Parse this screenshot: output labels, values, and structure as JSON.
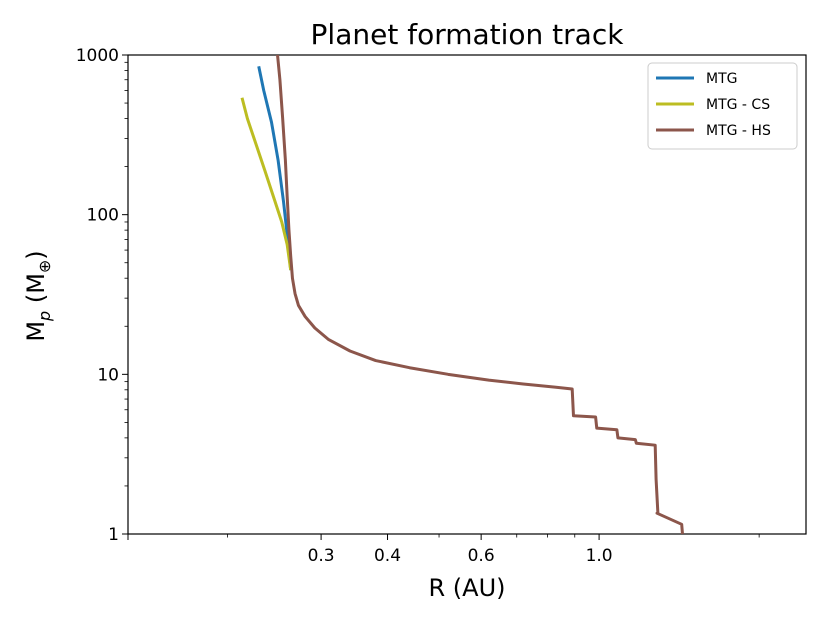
{
  "chart_data": {
    "type": "line",
    "title": "Planet formation track",
    "xlabel": "R (AU)",
    "ylabel": "M",
    "ylabel_sub": "p",
    "ylabel_unit_open": " (M",
    "ylabel_unit_sub": "⊕",
    "ylabel_unit_close": ")",
    "xscale": "log",
    "yscale": "log",
    "xlim": [
      0.13,
      2.45
    ],
    "ylim": [
      1,
      1000
    ],
    "grid": false,
    "legend_position": "top-right",
    "x_ticks": [
      {
        "value": 0.3,
        "label": "0.3"
      },
      {
        "value": 0.4,
        "label": "0.4"
      },
      {
        "value": 0.6,
        "label": "0.6"
      },
      {
        "value": 1.0,
        "label": "1.0"
      }
    ],
    "y_ticks": [
      {
        "value": 1,
        "label": "1"
      },
      {
        "value": 10,
        "label": "10"
      },
      {
        "value": 100,
        "label": "100"
      },
      {
        "value": 1000,
        "label": "1000"
      }
    ],
    "series": [
      {
        "name": "MTG",
        "color": "#1f77b4",
        "x": [
          0.229,
          0.234,
          0.242,
          0.249,
          0.255,
          0.259,
          0.263
        ],
        "y": [
          850,
          600,
          380,
          220,
          120,
          75,
          45
        ]
      },
      {
        "name": "MTG - CS",
        "color": "#bcbd22",
        "x": [
          0.213,
          0.218,
          0.226,
          0.235,
          0.244,
          0.253,
          0.259,
          0.263
        ],
        "y": [
          540,
          400,
          280,
          190,
          130,
          90,
          65,
          45
        ]
      },
      {
        "name": "MTG - HS",
        "color": "#8c564b",
        "x": [
          0.248,
          0.251,
          0.254,
          0.257,
          0.259,
          0.261,
          0.263,
          0.265,
          0.268,
          0.272,
          0.28,
          0.292,
          0.31,
          0.34,
          0.38,
          0.44,
          0.52,
          0.62,
          0.72,
          0.83,
          0.89,
          0.895,
          0.985,
          0.99,
          1.08,
          1.085,
          1.17,
          1.175,
          1.275,
          1.28,
          1.29,
          1.285,
          1.43,
          1.435
        ],
        "y": [
          1060,
          700,
          400,
          220,
          130,
          80,
          55,
          40,
          32,
          27,
          23,
          19.5,
          16.5,
          14,
          12.2,
          11,
          10,
          9.2,
          8.7,
          8.3,
          8.1,
          5.5,
          5.4,
          4.6,
          4.5,
          4.0,
          3.9,
          3.7,
          3.6,
          2.2,
          1.35,
          1.35,
          1.15,
          1.0
        ]
      }
    ]
  }
}
